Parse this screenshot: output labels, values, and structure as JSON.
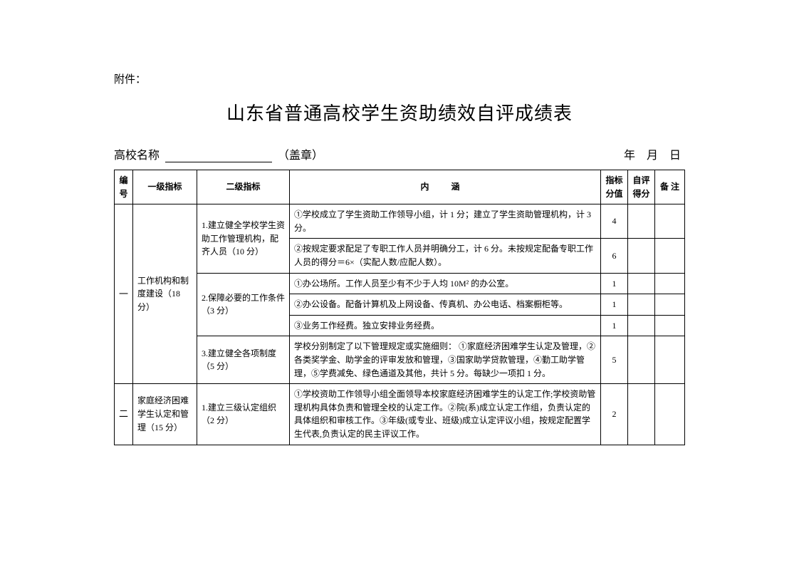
{
  "attachment_label": "附件：",
  "title": "山东省普通高校学生资助绩效自评成绩表",
  "school_name_label": "高校名称",
  "stamp_label": "（盖章）",
  "date_label": "年  月  日",
  "columns": {
    "num": "编号",
    "level1": "一级指标",
    "level2": "二级指标",
    "desc": "内   涵",
    "score": "指标分值",
    "self": "自评得分",
    "note": "备 注"
  },
  "rows": [
    {
      "num": "一",
      "level1": "工作机构和制度建设（18 分）",
      "level2": "1.建立健全学校学生资助工作管理机构，配齐人员（10 分）",
      "items": [
        {
          "desc": "①学校成立了学生资助工作领导小组，计 1 分；建立了学生资助管理机构，计 3 分。",
          "score": "4"
        },
        {
          "desc": "②按规定要求配足了专职工作人员并明确分工，计 6 分。未按规定配备专职工作人员的得分＝6×（实配人数/应配人数）。",
          "score": "6"
        }
      ]
    },
    {
      "level2": "2.保障必要的工作条件（3 分）",
      "items": [
        {
          "desc": "①办公场所。工作人员至少有不少于人均 10M² 的办公室。",
          "score": "1"
        },
        {
          "desc": "②办公设备。配备计算机及上网设备、传真机、办公电话、档案橱柜等。",
          "score": "1"
        },
        {
          "desc": "③业务工作经费。独立安排业务经费。",
          "score": "1"
        }
      ]
    },
    {
      "level2": "3.建立健全各项制度（5 分）",
      "items": [
        {
          "desc": "学校分别制定了以下管理规定或实施细则： ①家庭经济困难学生认定及管理，②各类奖学金、助学金的评审发放和管理，③国家助学贷款管理，④勤工助学管理，⑤学费减免、绿色通道及其他，共计 5 分。每缺少一项扣 1 分。",
          "score": "5"
        }
      ]
    },
    {
      "num": "二",
      "level1": "家庭经济困难学生认定和管理（15 分）",
      "level2": "1.建立三级认定组织（2 分）",
      "items": [
        {
          "desc": "①学校资助工作领导小组全面领导本校家庭经济困难学生的认定工作;学校资助管理机构具体负责和管理全校的认定工作。②院(系)成立认定工作组，负责认定的具体组织和审核工作。③年级(或专业、班级)成立认定评议小组，按规定配置学生代表,负责认定的民主评议工作。",
          "score": "2"
        }
      ]
    }
  ]
}
